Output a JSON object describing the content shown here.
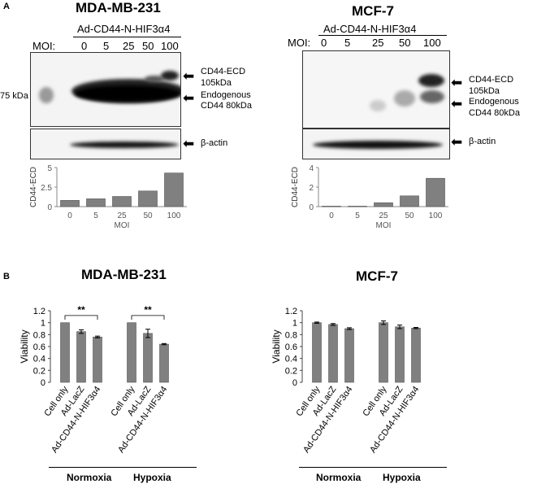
{
  "panel_a": {
    "label": "A",
    "mda": {
      "title": "MDA-MB-231",
      "vector": "Ad-CD44-N-HIF3α4",
      "moi_label": "MOI:",
      "moi_values": [
        "0",
        "5",
        "25",
        "50",
        "100"
      ],
      "marker": "75 kDa",
      "band_top": [
        "CD44-ECD",
        "105kDa"
      ],
      "band_bottom": [
        "Endogenous",
        "CD44 80kDa"
      ],
      "actin": "β-actin"
    },
    "mcf": {
      "title": "MCF-7",
      "vector": "Ad-CD44-N-HIF3α4",
      "moi_label": "MOI:",
      "moi_values": [
        "0",
        "5",
        "25",
        "50",
        "100"
      ],
      "band_top": [
        "CD44-ECD",
        "105kDa"
      ],
      "band_bottom": [
        "Endogenous",
        "CD44 80kDa"
      ],
      "actin": "β-actin"
    }
  },
  "panel_b": {
    "label": "B",
    "mda_title": "MDA-MB-231",
    "mcf_title": "MCF-7",
    "groups": [
      "Normoxia",
      "Hypoxia"
    ],
    "sig": "**"
  },
  "chart_data": [
    {
      "type": "bar",
      "panel": "A-MDA-MB-231",
      "ylabel": "CD44-ECD",
      "xlabel": "MOI",
      "categories": [
        "0",
        "5",
        "25",
        "50",
        "100"
      ],
      "values": [
        0.8,
        1.0,
        1.3,
        2.0,
        4.3
      ],
      "ylim": [
        0,
        5
      ],
      "yticks": [
        "0",
        "2.5",
        "5"
      ]
    },
    {
      "type": "bar",
      "panel": "A-MCF-7",
      "ylabel": "CD44-ECD",
      "xlabel": "MOI",
      "categories": [
        "0",
        "5",
        "25",
        "50",
        "100"
      ],
      "values": [
        0.05,
        0.05,
        0.4,
        1.1,
        2.9
      ],
      "ylim": [
        0,
        4
      ],
      "yticks": [
        "0",
        "2",
        "4"
      ]
    },
    {
      "type": "bar",
      "panel": "B-MDA-MB-231",
      "ylabel": "Viability",
      "categories": [
        "Cell only",
        "Ad-LacZ",
        "Ad-CD44-N-HIF3α4",
        "Cell only",
        "Ad-LacZ",
        "Ad-CD44-N-HIF3α4"
      ],
      "groups": [
        "Normoxia",
        "Normoxia",
        "Normoxia",
        "Hypoxia",
        "Hypoxia",
        "Hypoxia"
      ],
      "values": [
        1.0,
        0.85,
        0.76,
        1.0,
        0.82,
        0.64
      ],
      "errors": [
        0.0,
        0.03,
        0.015,
        0.0,
        0.07,
        0.01
      ],
      "ylim": [
        0,
        1.2
      ],
      "yticks": [
        "0",
        "0.2",
        "0.4",
        "0.6",
        "0.8",
        "1",
        "1.2"
      ]
    },
    {
      "type": "bar",
      "panel": "B-MCF-7",
      "ylabel": "Viability",
      "categories": [
        "Cell only",
        "Ad-LacZ",
        "Ad-CD44-N-HIF3α4",
        "Cell only",
        "Ad-LacZ",
        "Ad-CD44-N-HIF3α4"
      ],
      "groups": [
        "Normoxia",
        "Normoxia",
        "Normoxia",
        "Hypoxia",
        "Hypoxia",
        "Hypoxia"
      ],
      "values": [
        1.0,
        0.97,
        0.9,
        1.0,
        0.93,
        0.91
      ],
      "errors": [
        0.01,
        0.015,
        0.015,
        0.03,
        0.03,
        0.01
      ],
      "ylim": [
        0,
        1.2
      ],
      "yticks": [
        "0",
        "0.2",
        "0.4",
        "0.6",
        "0.8",
        "1",
        "1.2"
      ]
    }
  ]
}
